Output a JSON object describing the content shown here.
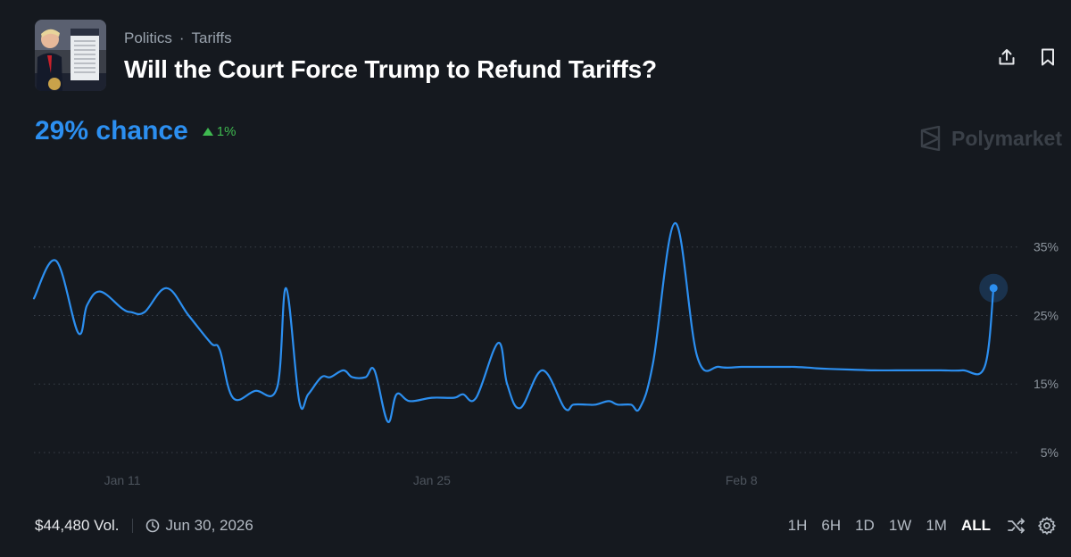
{
  "header": {
    "breadcrumb": [
      "Politics",
      "Tariffs"
    ],
    "breadcrumb_separator": "·",
    "title": "Will the Court Force Trump to Refund Tariffs?"
  },
  "summary": {
    "chance_text": "29% chance",
    "change_text": "1%",
    "change_direction": "up"
  },
  "watermark": "Polymarket",
  "footer": {
    "volume": "$44,480 Vol.",
    "end_date": "Jun 30, 2026",
    "ranges": [
      "1H",
      "6H",
      "1D",
      "1W",
      "1M",
      "ALL"
    ],
    "active_range": "ALL"
  },
  "colors": {
    "background": "#15191f",
    "line": "#2c8ff0",
    "positive": "#3fb950",
    "muted": "#9aa3ae"
  },
  "icons": [
    "share-icon",
    "bookmark-icon",
    "clock-icon",
    "shuffle-icon",
    "gear-icon",
    "polymarket-logo-icon"
  ],
  "chart_data": {
    "type": "line",
    "ylabel": "",
    "xlabel": "",
    "y_unit": "%",
    "y_ticks": [
      5,
      15,
      25,
      35
    ],
    "y_tick_labels": [
      "5%",
      "15%",
      "25%",
      "35%"
    ],
    "ylim": [
      2,
      45
    ],
    "x_ticks": [
      "2026-01-11",
      "2026-01-25",
      "2026-02-08"
    ],
    "x_tick_labels": [
      "Jan 11",
      "Jan 25",
      "Feb 8"
    ],
    "xlim": [
      "2026-01-07",
      "2026-02-20"
    ],
    "grid": "horizontal-dotted",
    "series": [
      {
        "x": [
          "2026-01-07",
          "2026-01-08",
          "2026-01-09",
          "2026-01-09",
          "2026-01-10",
          "2026-01-11",
          "2026-01-11",
          "2026-01-12",
          "2026-01-13",
          "2026-01-14",
          "2026-01-15",
          "2026-01-15",
          "2026-01-16",
          "2026-01-17",
          "2026-01-18",
          "2026-01-18",
          "2026-01-19",
          "2026-01-19",
          "2026-01-20",
          "2026-01-20",
          "2026-01-21",
          "2026-01-21",
          "2026-01-22",
          "2026-01-22",
          "2026-01-23",
          "2026-01-23",
          "2026-01-24",
          "2026-01-25",
          "2026-01-26",
          "2026-01-26",
          "2026-01-27",
          "2026-01-28",
          "2026-01-28",
          "2026-01-29",
          "2026-01-30",
          "2026-01-31",
          "2026-01-31",
          "2026-02-01",
          "2026-02-01",
          "2026-02-02",
          "2026-02-02",
          "2026-02-03",
          "2026-02-03",
          "2026-02-04",
          "2026-02-05",
          "2026-02-06",
          "2026-02-07",
          "2026-02-08",
          "2026-02-08",
          "2026-02-09",
          "2026-02-10",
          "2026-02-10",
          "2026-02-11",
          "2026-02-11",
          "2026-02-12",
          "2026-02-13",
          "2026-02-14",
          "2026-02-15",
          "2026-02-16",
          "2026-02-17",
          "2026-02-18",
          "2026-02-19",
          "2026-02-19"
        ],
        "y": [
          27.5,
          33.0,
          22.5,
          26.5,
          28.5,
          26.0,
          25.5,
          25.5,
          29.0,
          25.0,
          21.0,
          20.0,
          13.0,
          14.0,
          14.5,
          29.0,
          12.5,
          13.5,
          16.0,
          16.0,
          17.0,
          16.0,
          16.0,
          17.0,
          9.5,
          13.5,
          12.5,
          13.0,
          13.0,
          13.5,
          13.0,
          21.0,
          15.0,
          11.5,
          17.0,
          11.5,
          12.0,
          12.0,
          12.0,
          12.5,
          12.0,
          12.0,
          11.5,
          18.0,
          38.5,
          19.0,
          17.5,
          17.5,
          17.5,
          17.5,
          17.5,
          17.5,
          17.4,
          17.3,
          17.2,
          17.1,
          17.0,
          17.0,
          17.0,
          17.0,
          17.0,
          17.5,
          29.0
        ]
      }
    ]
  }
}
